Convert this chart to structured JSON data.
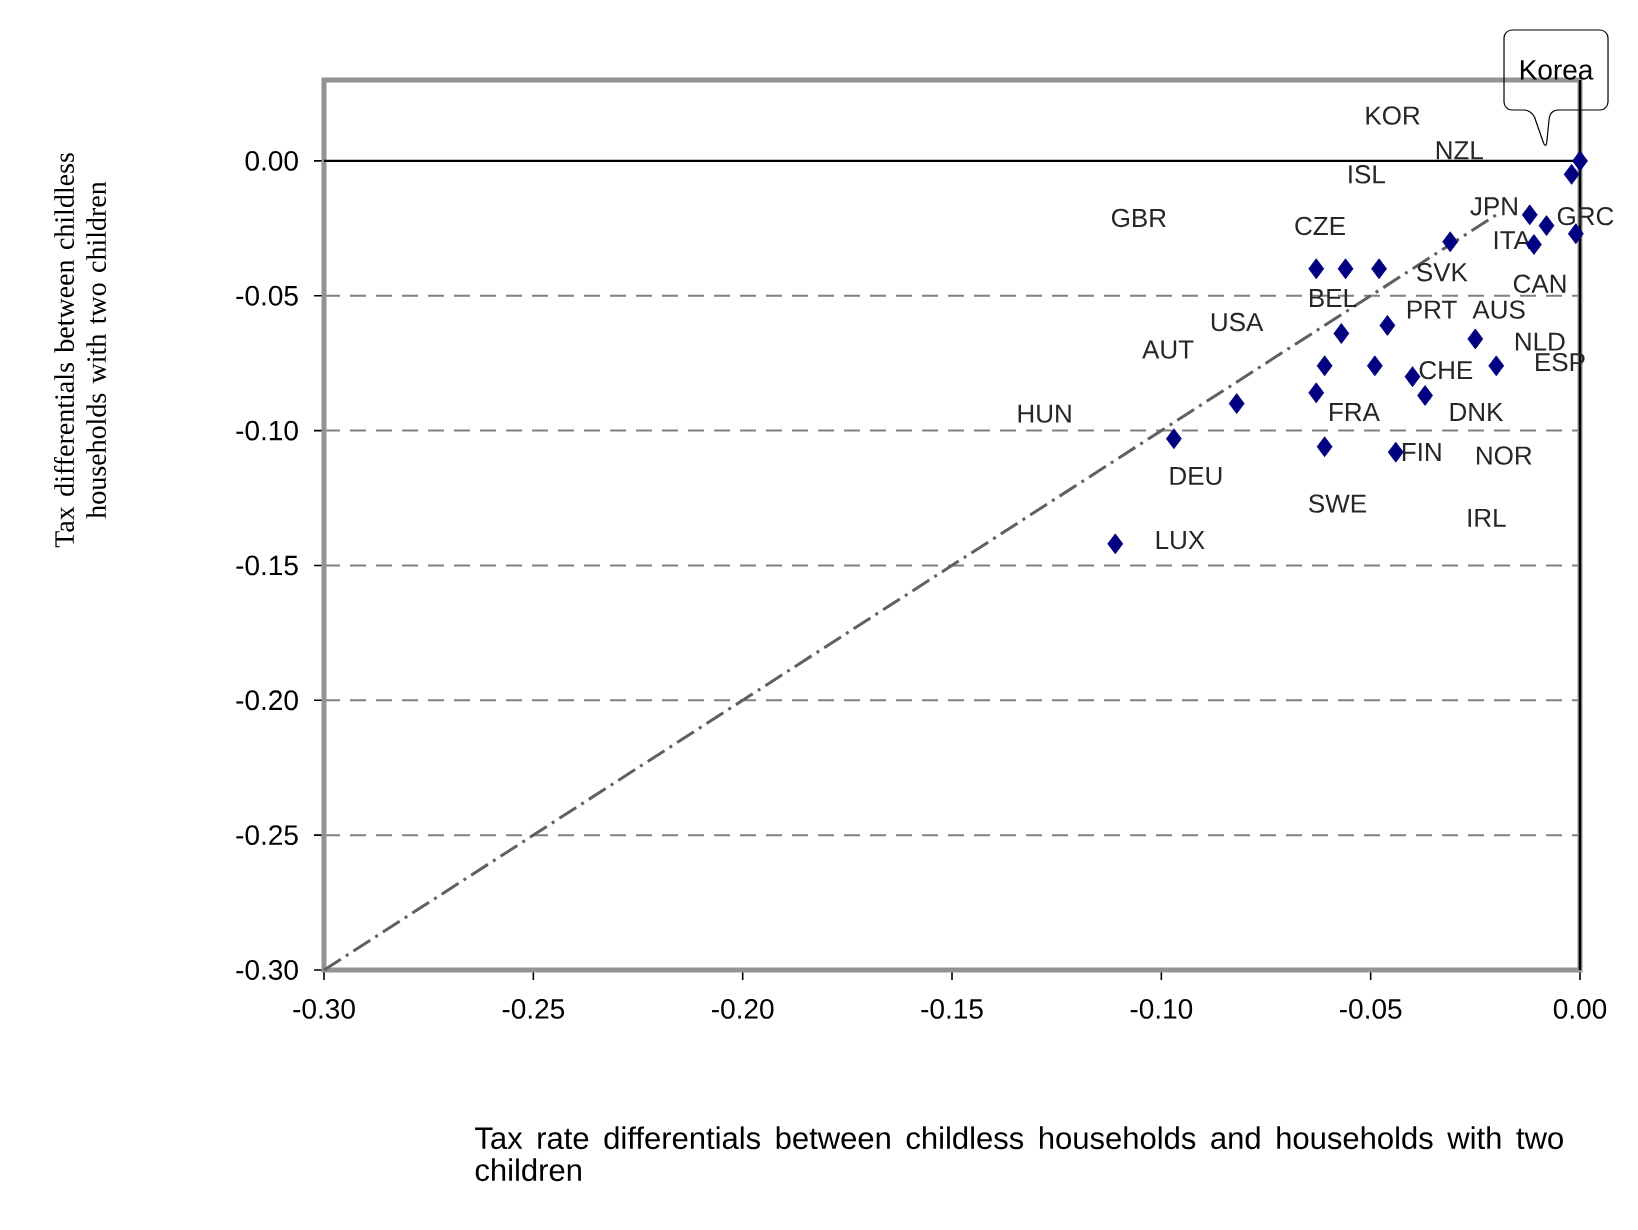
{
  "chart_data": {
    "type": "scatter",
    "xlabel": "Tax rate differentials between childless households and households with two children",
    "ylabel": "Tax differentials between childless households with two children",
    "xlim": [
      -0.3,
      0.0
    ],
    "ylim": [
      -0.3,
      0.03
    ],
    "xticks": [
      {
        "value": -0.3,
        "label": "-0.30"
      },
      {
        "value": -0.25,
        "label": "-0.25"
      },
      {
        "value": -0.2,
        "label": "-0.20"
      },
      {
        "value": -0.15,
        "label": "-0.15"
      },
      {
        "value": -0.1,
        "label": "-0.10"
      },
      {
        "value": -0.05,
        "label": "-0.05"
      },
      {
        "value": 0,
        "label": "0.00"
      }
    ],
    "yticks": [
      {
        "value": -0.3,
        "label": "-0.30"
      },
      {
        "value": -0.25,
        "label": "-0.25"
      },
      {
        "value": -0.2,
        "label": "-0.20"
      },
      {
        "value": -0.15,
        "label": "-0.15"
      },
      {
        "value": -0.1,
        "label": "-0.10"
      },
      {
        "value": -0.05,
        "label": "-0.05"
      },
      {
        "value": 0,
        "label": "0.00"
      }
    ],
    "grid": "y",
    "marker": "diamond",
    "ref_lines": [
      {
        "axis": "y",
        "value": 0
      }
    ],
    "series": [
      {
        "color": "#000080",
        "x": [
          0.0,
          -0.002,
          -0.001,
          -0.012,
          -0.011,
          -0.008,
          -0.031,
          -0.063,
          -0.056,
          -0.048,
          -0.057,
          -0.046,
          -0.025,
          -0.02,
          -0.061,
          -0.049,
          -0.04,
          -0.063,
          -0.037,
          -0.082,
          -0.097,
          -0.061,
          -0.044,
          -0.111
        ],
        "values": [
          0.0,
          -0.005,
          -0.027,
          -0.02,
          -0.031,
          -0.024,
          -0.03,
          -0.04,
          -0.04,
          -0.04,
          -0.064,
          -0.061,
          -0.066,
          -0.076,
          -0.076,
          -0.076,
          -0.08,
          -0.086,
          -0.087,
          -0.09,
          -0.103,
          -0.106,
          -0.108,
          -0.142
        ]
      },
      {
        "type": "line",
        "color": "#606060",
        "line_style": "dashdot",
        "marker": "none",
        "x": [
          -0.3,
          -0.02
        ],
        "values": [
          -0.3,
          -0.02
        ]
      }
    ],
    "annotations": [
      "KOR",
      "NZL",
      "ISL",
      "GBR",
      "CZE",
      "JPN",
      "GRC",
      "ITA",
      "SVK",
      "CAN",
      "BEL",
      "USA",
      "PRT",
      "AUS",
      "NLD",
      "ESP",
      "AUT",
      "CHE",
      "HUN",
      "FRA",
      "DNK",
      "DEU",
      "FIN",
      "NOR",
      "SWE",
      "IRL",
      "LUX",
      "Korea"
    ]
  }
}
